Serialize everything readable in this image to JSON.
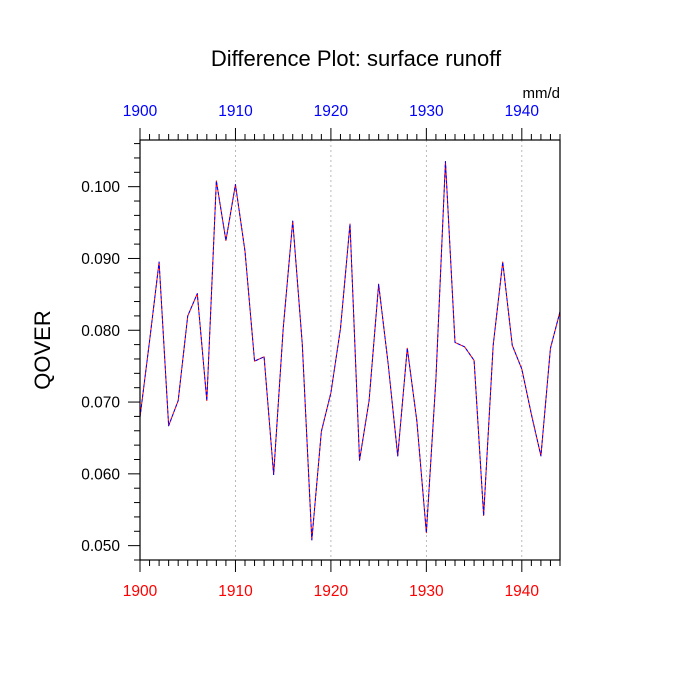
{
  "chart_data": {
    "type": "line",
    "title": "Difference Plot: surface runoff",
    "units": "mm/d",
    "ylabel": "QOVER",
    "xlabel": "",
    "xlim": [
      1900,
      1944
    ],
    "ylim": [
      0.048,
      0.1065
    ],
    "x_major_ticks": [
      1900,
      1910,
      1920,
      1930,
      1940
    ],
    "x_tick_labels": [
      "1900",
      "1910",
      "1920",
      "1930",
      "1940"
    ],
    "y_major_ticks": [
      0.05,
      0.06,
      0.07,
      0.08,
      0.09,
      0.1
    ],
    "y_tick_labels": [
      "0.050",
      "0.060",
      "0.070",
      "0.080",
      "0.090",
      "0.100"
    ],
    "top_axis_label_color": "#0000ff",
    "bottom_axis_label_color": "#ff0000",
    "gridlines": "vertical dashed at major x ticks",
    "series": [
      {
        "color": "#ff0000",
        "style": "solid",
        "x": [
          1900,
          1901,
          1902,
          1903,
          1904,
          1905,
          1906,
          1907,
          1908,
          1909,
          1910,
          1911,
          1912,
          1913,
          1914,
          1915,
          1916,
          1917,
          1918,
          1919,
          1920,
          1921,
          1922,
          1923,
          1924,
          1925,
          1926,
          1927,
          1928,
          1929,
          1930,
          1931,
          1932,
          1933,
          1934,
          1935,
          1936,
          1937,
          1938,
          1939,
          1940,
          1941,
          1942,
          1943,
          1944
        ],
        "y": [
          0.0679,
          0.0785,
          0.0895,
          0.0667,
          0.0702,
          0.082,
          0.0851,
          0.0702,
          0.1008,
          0.0925,
          0.1003,
          0.091,
          0.0757,
          0.0763,
          0.0599,
          0.0802,
          0.0952,
          0.0781,
          0.0508,
          0.0659,
          0.0713,
          0.0802,
          0.0948,
          0.0619,
          0.0702,
          0.0864,
          0.0753,
          0.0625,
          0.0775,
          0.0674,
          0.0518,
          0.0732,
          0.1035,
          0.0783,
          0.0777,
          0.0758,
          0.0542,
          0.0779,
          0.0895,
          0.0779,
          0.0746,
          0.0683,
          0.0625,
          0.0775,
          0.0826
        ]
      },
      {
        "color": "#0000ff",
        "style": "dashed",
        "x": [
          1900,
          1901,
          1902,
          1903,
          1904,
          1905,
          1906,
          1907,
          1908,
          1909,
          1910,
          1911,
          1912,
          1913,
          1914,
          1915,
          1916,
          1917,
          1918,
          1919,
          1920,
          1921,
          1922,
          1923,
          1924,
          1925,
          1926,
          1927,
          1928,
          1929,
          1930,
          1931,
          1932,
          1933,
          1934,
          1935,
          1936,
          1937,
          1938,
          1939,
          1940,
          1941,
          1942,
          1943,
          1944
        ],
        "y": [
          0.0679,
          0.0785,
          0.0895,
          0.0667,
          0.0702,
          0.082,
          0.0851,
          0.0702,
          0.1008,
          0.0925,
          0.1003,
          0.091,
          0.0757,
          0.0763,
          0.0599,
          0.0802,
          0.0952,
          0.0781,
          0.0508,
          0.0659,
          0.0713,
          0.0802,
          0.0948,
          0.0619,
          0.0702,
          0.0864,
          0.0753,
          0.0625,
          0.0775,
          0.0674,
          0.0518,
          0.0732,
          0.1035,
          0.0783,
          0.0777,
          0.0758,
          0.0542,
          0.0779,
          0.0895,
          0.0779,
          0.0746,
          0.0683,
          0.0625,
          0.0775,
          0.0826
        ]
      }
    ]
  }
}
